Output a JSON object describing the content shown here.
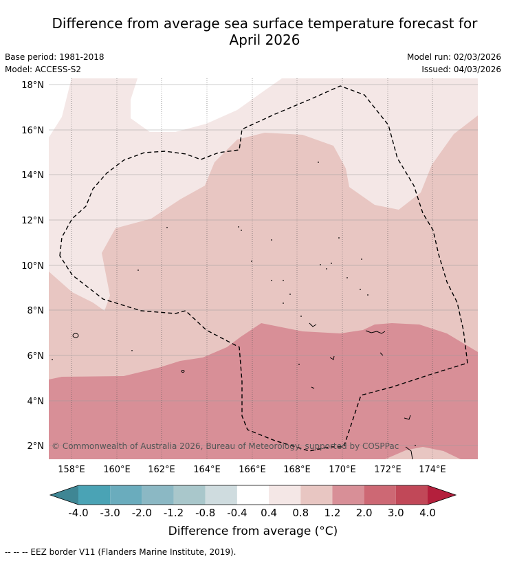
{
  "title_line1": "Difference from average sea surface temperature forecast for",
  "title_line2": "April 2026",
  "base_period": "Base period: 1981-2018",
  "model": "Model: ACCESS-S2",
  "model_run": "Model run: 02/03/2026",
  "issued": "Issued: 04/03/2026",
  "lat_labels": [
    "18°N",
    "16°N",
    "14°N",
    "12°N",
    "10°N",
    "8°N",
    "6°N",
    "4°N",
    "2°N"
  ],
  "lon_labels": [
    "158°E",
    "160°E",
    "162°E",
    "164°E",
    "166°E",
    "168°E",
    "170°E",
    "172°E",
    "174°E"
  ],
  "copyright": "© Commonwealth of Australia 2026, Bureau of Meteorology, supported by COSPPac",
  "colorbar": {
    "ticks": [
      "-4.0",
      "-3.0",
      "-2.0",
      "-1.2",
      "-0.8",
      "-0.4",
      "0.4",
      "0.8",
      "1.2",
      "2.0",
      "3.0",
      "4.0"
    ],
    "colors": [
      "#4aa3b5",
      "#6aacbd",
      "#8bb8c4",
      "#a9c7cb",
      "#cfdcdf",
      "#ffffff",
      "#f4e7e6",
      "#e8c6c2",
      "#d88f97",
      "#cd6874",
      "#c14858"
    ],
    "under_color": "#3f8694",
    "over_color": "#b41f3c",
    "label": "Difference from average (°C)"
  },
  "legend": "--  --  -- EEZ border V11 (Flanders Marine Institute, 2019)."
}
